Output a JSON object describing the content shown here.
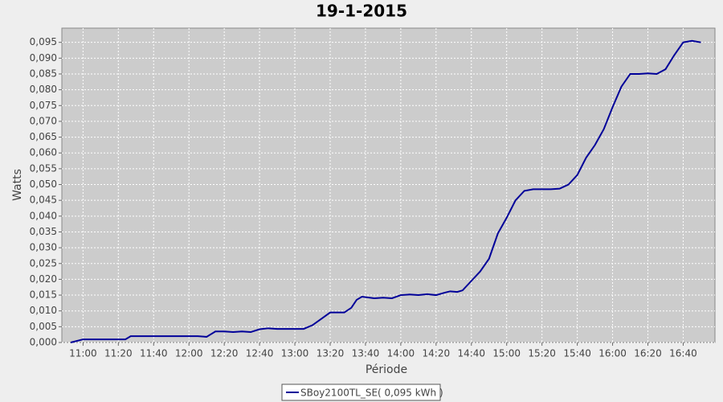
{
  "chart_data": {
    "type": "line",
    "title": "19-1-2015",
    "x_label": "Période",
    "y_label": "Watts",
    "x": [
      "10:53",
      "11:00",
      "11:10",
      "11:20",
      "11:24",
      "11:27",
      "11:40",
      "11:50",
      "12:00",
      "12:05",
      "12:10",
      "12:15",
      "12:20",
      "12:25",
      "12:30",
      "12:35",
      "12:40",
      "12:45",
      "12:50",
      "13:00",
      "13:05",
      "13:10",
      "13:15",
      "13:20",
      "13:25",
      "13:28",
      "13:32",
      "13:35",
      "13:38",
      "13:45",
      "13:50",
      "13:55",
      "14:00",
      "14:05",
      "14:10",
      "14:15",
      "14:20",
      "14:25",
      "14:28",
      "14:32",
      "14:35",
      "14:40",
      "14:45",
      "14:50",
      "14:55",
      "15:00",
      "15:05",
      "15:10",
      "15:15",
      "15:20",
      "15:25",
      "15:30",
      "15:35",
      "15:40",
      "15:45",
      "15:50",
      "15:55",
      "16:00",
      "16:05",
      "16:10",
      "16:15",
      "16:20",
      "16:25",
      "16:30",
      "16:35",
      "16:40",
      "16:45",
      "16:50"
    ],
    "series": [
      {
        "name": "SBoy2100TL_SE( 0,095 kWh )",
        "color": "#000099",
        "values": [
          0,
          0.001,
          0.001,
          0.001,
          0.001,
          0.002,
          0.002,
          0.002,
          0.002,
          0.002,
          0.0018,
          0.0035,
          0.0035,
          0.0033,
          0.0035,
          0.0033,
          0.0042,
          0.0045,
          0.0043,
          0.0043,
          0.0043,
          0.0055,
          0.0075,
          0.0095,
          0.0095,
          0.0095,
          0.011,
          0.0135,
          0.0145,
          0.014,
          0.0142,
          0.014,
          0.015,
          0.0152,
          0.015,
          0.0153,
          0.015,
          0.0158,
          0.0162,
          0.016,
          0.0165,
          0.0195,
          0.0225,
          0.0265,
          0.0345,
          0.0395,
          0.045,
          0.048,
          0.0485,
          0.0485,
          0.0485,
          0.0487,
          0.05,
          0.053,
          0.0585,
          0.0625,
          0.0675,
          0.0745,
          0.081,
          0.085,
          0.085,
          0.0852,
          0.085,
          0.0865,
          0.091,
          0.095,
          0.0955,
          0.095
        ]
      }
    ],
    "xlim": [
      "10:48",
      "16:58"
    ],
    "xticks": [
      "11:00",
      "11:20",
      "11:40",
      "12:00",
      "12:20",
      "12:40",
      "13:00",
      "13:20",
      "13:40",
      "14:00",
      "14:20",
      "14:40",
      "15:00",
      "15:20",
      "15:40",
      "16:00",
      "16:20",
      "16:40"
    ],
    "ylim": [
      0,
      0.0995
    ],
    "yticks": [
      {
        "value": 0,
        "label": "0,000"
      },
      {
        "value": 0.005,
        "label": "0,005"
      },
      {
        "value": 0.01,
        "label": "0,010"
      },
      {
        "value": 0.015,
        "label": "0,015"
      },
      {
        "value": 0.02,
        "label": "0,020"
      },
      {
        "value": 0.025,
        "label": "0,025"
      },
      {
        "value": 0.03,
        "label": "0,030"
      },
      {
        "value": 0.035,
        "label": "0,035"
      },
      {
        "value": 0.04,
        "label": "0,040"
      },
      {
        "value": 0.045,
        "label": "0,045"
      },
      {
        "value": 0.05,
        "label": "0,050"
      },
      {
        "value": 0.055,
        "label": "0,055"
      },
      {
        "value": 0.06,
        "label": "0,060"
      },
      {
        "value": 0.065,
        "label": "0,065"
      },
      {
        "value": 0.07,
        "label": "0,070"
      },
      {
        "value": 0.075,
        "label": "0,075"
      },
      {
        "value": 0.08,
        "label": "0,080"
      },
      {
        "value": 0.085,
        "label": "0,085"
      },
      {
        "value": 0.09,
        "label": "0,090"
      },
      {
        "value": 0.095,
        "label": "0,095"
      }
    ],
    "grid": true
  }
}
